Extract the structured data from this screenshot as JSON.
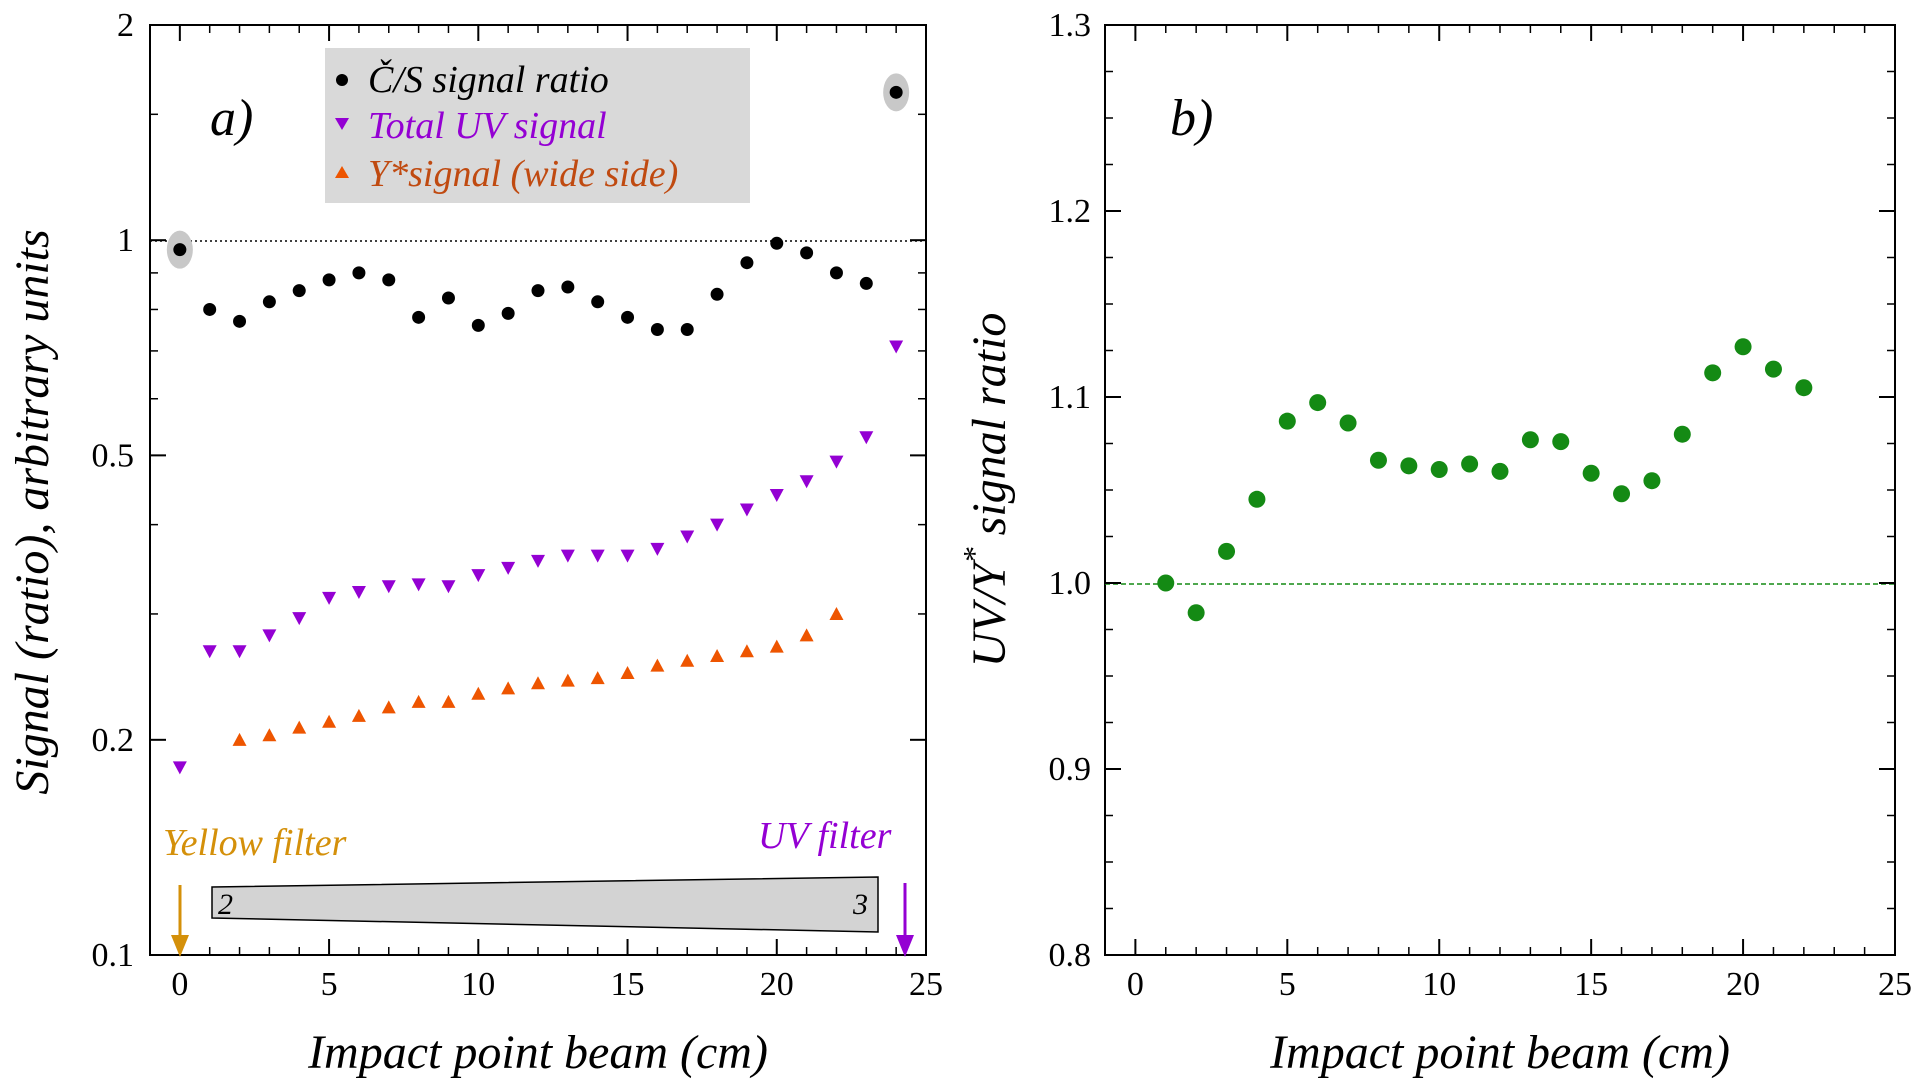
{
  "colors": {
    "cs": "#000000",
    "uv": "#9400d3",
    "ystar": "#ee5500",
    "green": "#148a14",
    "yellow_filter": "#d4900a",
    "legend_bg": "#d9d9d9",
    "highlight": "#c8c8c8"
  },
  "annotations": {
    "yellow_filter": "Yellow filter",
    "uv_filter": "UV filter",
    "wedge_left": "2",
    "wedge_right": "3"
  },
  "chart_data": [
    {
      "type": "scatter",
      "panel_label": "a)",
      "xlabel": "Impact point beam (cm)",
      "ylabel": "Signal (ratio), arbitrary units",
      "xlim": [
        -1,
        25
      ],
      "ylim": [
        0.1,
        2
      ],
      "yscale": "log",
      "xticks": [
        "0",
        "5",
        "10",
        "15",
        "20",
        "25"
      ],
      "yticks": [
        "0.1",
        "0.2",
        "0.5",
        "1",
        "2"
      ],
      "reference_line": 1,
      "legend_position": "top-center",
      "series": [
        {
          "name": "Č/S signal ratio",
          "marker": "circle",
          "x": [
            0,
            1,
            2,
            3,
            4,
            5,
            6,
            7,
            8,
            9,
            10,
            11,
            12,
            13,
            14,
            15,
            16,
            17,
            18,
            19,
            20,
            21,
            22,
            23,
            24
          ],
          "y": [
            0.97,
            0.8,
            0.77,
            0.82,
            0.85,
            0.88,
            0.9,
            0.88,
            0.78,
            0.83,
            0.76,
            0.79,
            0.85,
            0.86,
            0.82,
            0.78,
            0.75,
            0.75,
            0.84,
            0.93,
            0.99,
            0.96,
            0.9,
            0.87,
            1.61
          ],
          "highlighted_x": [
            0,
            24
          ]
        },
        {
          "name": "Total UV signal",
          "marker": "triangle-down",
          "x": [
            0,
            1,
            2,
            3,
            4,
            5,
            6,
            7,
            8,
            9,
            10,
            11,
            12,
            13,
            14,
            15,
            16,
            17,
            18,
            19,
            20,
            21,
            22,
            23,
            24
          ],
          "y": [
            0.183,
            0.266,
            0.266,
            0.28,
            0.296,
            0.316,
            0.322,
            0.328,
            0.33,
            0.328,
            0.34,
            0.348,
            0.356,
            0.362,
            0.362,
            0.362,
            0.37,
            0.385,
            0.4,
            0.42,
            0.44,
            0.46,
            0.49,
            0.53,
            0.71
          ]
        },
        {
          "name": "Y*signal (wide side)",
          "marker": "triangle-up",
          "x": [
            2,
            3,
            4,
            5,
            6,
            7,
            8,
            9,
            10,
            11,
            12,
            13,
            14,
            15,
            16,
            17,
            18,
            19,
            20,
            21,
            22
          ],
          "y": [
            0.2,
            0.203,
            0.208,
            0.212,
            0.216,
            0.222,
            0.226,
            0.226,
            0.232,
            0.236,
            0.24,
            0.242,
            0.244,
            0.248,
            0.254,
            0.258,
            0.262,
            0.266,
            0.27,
            0.28,
            0.3
          ]
        }
      ]
    },
    {
      "type": "scatter",
      "panel_label": "b)",
      "xlabel": "Impact point beam (cm)",
      "ylabel_main": "UV/Y",
      "ylabel_sup": "*",
      "ylabel_rest": " signal ratio",
      "xlim": [
        -1,
        25
      ],
      "ylim": [
        0.8,
        1.3
      ],
      "xticks": [
        "0",
        "5",
        "10",
        "15",
        "20",
        "25"
      ],
      "yticks": [
        "0.8",
        "0.9",
        "1.0",
        "1.1",
        "1.2",
        "1.3"
      ],
      "reference_line": 1.0,
      "series": [
        {
          "marker": "circle",
          "x": [
            1,
            2,
            3,
            4,
            5,
            6,
            7,
            8,
            9,
            10,
            11,
            12,
            13,
            14,
            15,
            16,
            17,
            18,
            19,
            20,
            21,
            22
          ],
          "y": [
            1.0,
            0.984,
            1.017,
            1.045,
            1.087,
            1.097,
            1.086,
            1.066,
            1.063,
            1.061,
            1.064,
            1.06,
            1.077,
            1.076,
            1.059,
            1.048,
            1.055,
            1.08,
            1.113,
            1.127,
            1.115,
            1.105
          ]
        }
      ]
    }
  ]
}
